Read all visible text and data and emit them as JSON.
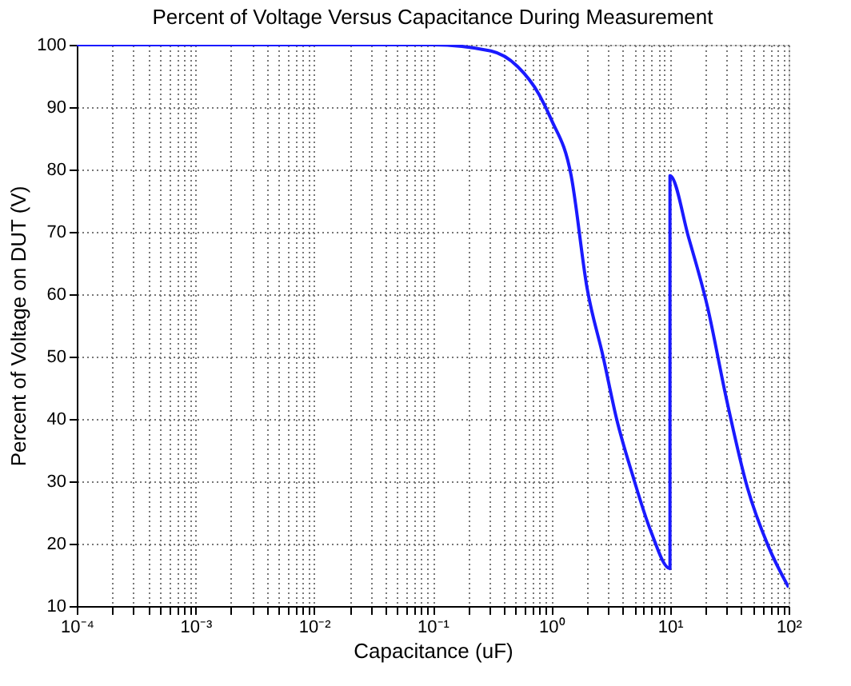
{
  "chart_data": {
    "type": "line",
    "title": "Percent of Voltage Versus Capacitance During Measurement",
    "xlabel": "Capacitance (uF)",
    "ylabel": "Percent of Voltage on DUT (V)",
    "log": "x",
    "grid": true,
    "legend": false,
    "marker": "none",
    "line_style": "solid",
    "xlim": [
      0.0001,
      100
    ],
    "ylim": [
      10,
      100
    ],
    "xticks": [
      {
        "value": 0.0001,
        "label": "10⁻⁴"
      },
      {
        "value": 0.0002,
        "label": null
      },
      {
        "value": 0.0003,
        "label": null
      },
      {
        "value": 0.0004,
        "label": null
      },
      {
        "value": 0.0005,
        "label": null
      },
      {
        "value": 0.0006,
        "label": null
      },
      {
        "value": 0.0007,
        "label": null
      },
      {
        "value": 0.0008,
        "label": null
      },
      {
        "value": 0.0009,
        "label": null
      },
      {
        "value": 0.001,
        "label": "10⁻³"
      },
      {
        "value": 0.002,
        "label": null
      },
      {
        "value": 0.003,
        "label": null
      },
      {
        "value": 0.004,
        "label": null
      },
      {
        "value": 0.005,
        "label": null
      },
      {
        "value": 0.006,
        "label": null
      },
      {
        "value": 0.007,
        "label": null
      },
      {
        "value": 0.008,
        "label": null
      },
      {
        "value": 0.009,
        "label": null
      },
      {
        "value": 0.01,
        "label": "10⁻²"
      },
      {
        "value": 0.02,
        "label": null
      },
      {
        "value": 0.03,
        "label": null
      },
      {
        "value": 0.04,
        "label": null
      },
      {
        "value": 0.05,
        "label": null
      },
      {
        "value": 0.06,
        "label": null
      },
      {
        "value": 0.07,
        "label": null
      },
      {
        "value": 0.08,
        "label": null
      },
      {
        "value": 0.09,
        "label": null
      },
      {
        "value": 0.1,
        "label": "10⁻¹"
      },
      {
        "value": 0.2,
        "label": null
      },
      {
        "value": 0.3,
        "label": null
      },
      {
        "value": 0.4,
        "label": null
      },
      {
        "value": 0.5,
        "label": null
      },
      {
        "value": 0.6,
        "label": null
      },
      {
        "value": 0.7,
        "label": null
      },
      {
        "value": 0.8,
        "label": null
      },
      {
        "value": 0.9,
        "label": null
      },
      {
        "value": 1,
        "label": "10⁰"
      },
      {
        "value": 2,
        "label": null
      },
      {
        "value": 3,
        "label": null
      },
      {
        "value": 4,
        "label": null
      },
      {
        "value": 5,
        "label": null
      },
      {
        "value": 6,
        "label": null
      },
      {
        "value": 7,
        "label": null
      },
      {
        "value": 8,
        "label": null
      },
      {
        "value": 9,
        "label": null
      },
      {
        "value": 10,
        "label": "10¹"
      },
      {
        "value": 20,
        "label": null
      },
      {
        "value": 30,
        "label": null
      },
      {
        "value": 40,
        "label": null
      },
      {
        "value": 50,
        "label": null
      },
      {
        "value": 60,
        "label": null
      },
      {
        "value": 70,
        "label": null
      },
      {
        "value": 80,
        "label": null
      },
      {
        "value": 90,
        "label": null
      },
      {
        "value": 100,
        "label": "10²"
      }
    ],
    "yticks": [
      10,
      20,
      30,
      40,
      50,
      60,
      70,
      80,
      90,
      100
    ],
    "series": [
      {
        "color": "#1a1aff",
        "x": [
          0.0001,
          0.001,
          0.01,
          0.1,
          0.31,
          0.52,
          0.79,
          1.0,
          1.47,
          2.0,
          2.73,
          3.55,
          4.84,
          6.9,
          10,
          10,
          14.4,
          20.7,
          29.7,
          44.9,
          67.4,
          100
        ],
        "values": [
          100,
          100,
          100,
          100,
          99,
          96.5,
          92,
          88,
          79,
          61,
          50,
          40,
          31,
          22,
          16,
          79,
          69,
          58,
          43.5,
          29,
          19.6,
          13
        ]
      }
    ]
  }
}
